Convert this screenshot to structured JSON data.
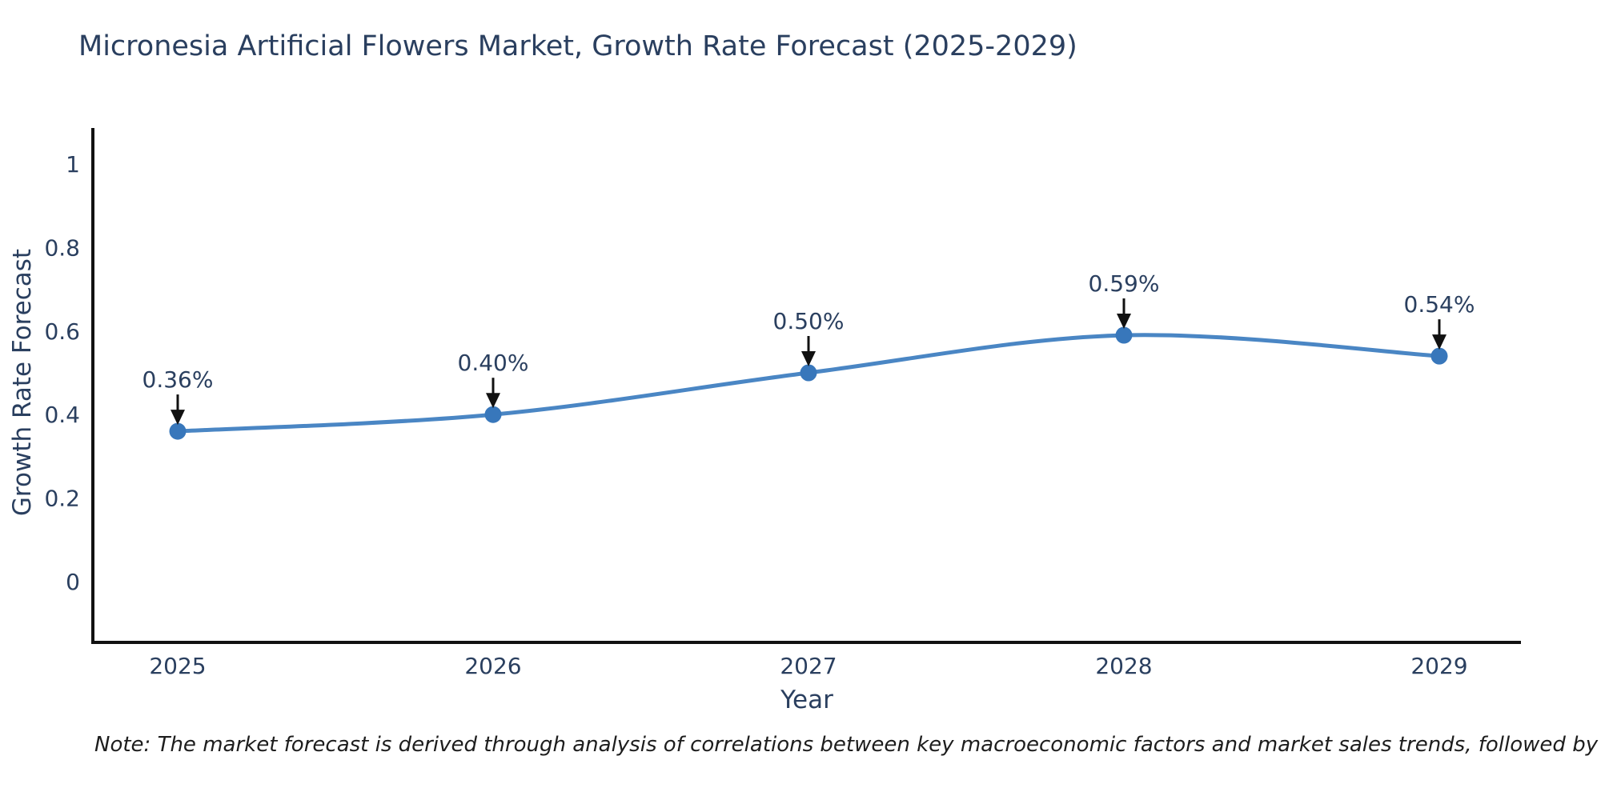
{
  "title": "Micronesia Artificial Flowers Market, Growth Rate Forecast (2025-2029)",
  "note": "Note: The market forecast is derived through analysis of correlations between key macroeconomic factors and market sales trends, followed by predictive modeling to project future sales",
  "colors": {
    "title_text": "#2a3f5f",
    "tick_text": "#2a3f5f",
    "axis_line": "#111111",
    "trend_line": "#4a86c4",
    "marker": "#3877bb",
    "annotation_arrow": "#111111",
    "background": "#ffffff"
  },
  "chart_data": {
    "type": "line",
    "title": "Micronesia Artificial Flowers Market, Growth Rate Forecast (2025-2029)",
    "xlabel": "Year",
    "ylabel": "Growth Rate Forecast",
    "x": [
      2025,
      2026,
      2027,
      2028,
      2029
    ],
    "values": [
      0.36,
      0.4,
      0.5,
      0.59,
      0.54
    ],
    "point_labels": [
      "0.36%",
      "0.40%",
      "0.50%",
      "0.59%",
      "0.54%"
    ],
    "yticks": [
      0,
      0.2,
      0.4,
      0.6,
      0.8,
      1
    ],
    "ytick_labels": [
      "0",
      "0.2",
      "0.4",
      "0.6",
      "0.8",
      "1"
    ],
    "xtick_labels": [
      "2025",
      "2026",
      "2027",
      "2028",
      "2029"
    ],
    "ylim": [
      -0.15,
      1.09
    ],
    "grid": false,
    "legend": "none",
    "line_shape": "spline",
    "annotations": "value labels with downward arrows above each point"
  }
}
